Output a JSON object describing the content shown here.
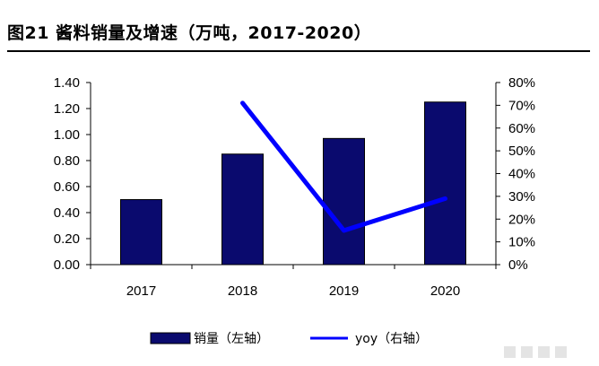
{
  "title": "图21 酱料销量及增速（万吨，2017-2020）",
  "chart_data": {
    "type": "bar",
    "categories": [
      "2017",
      "2018",
      "2019",
      "2020"
    ],
    "series": [
      {
        "name": "销量（左轴）",
        "type": "bar",
        "axis": "left",
        "values": [
          0.5,
          0.85,
          0.97,
          1.25
        ],
        "color": "#0a0a6e"
      },
      {
        "name": "yoy（右轴）",
        "type": "line",
        "axis": "right",
        "values": [
          null,
          71,
          15,
          29
        ],
        "color": "#0000ff"
      }
    ],
    "y_left": {
      "ticks": [
        "0.00",
        "0.20",
        "0.40",
        "0.60",
        "0.80",
        "1.00",
        "1.20",
        "1.40"
      ],
      "ylim": [
        0,
        1.4
      ]
    },
    "y_right": {
      "ticks": [
        "0%",
        "10%",
        "20%",
        "30%",
        "40%",
        "50%",
        "60%",
        "70%",
        "80%"
      ],
      "ylim": [
        0,
        80
      ]
    },
    "grid": false,
    "legend_position": "bottom"
  }
}
